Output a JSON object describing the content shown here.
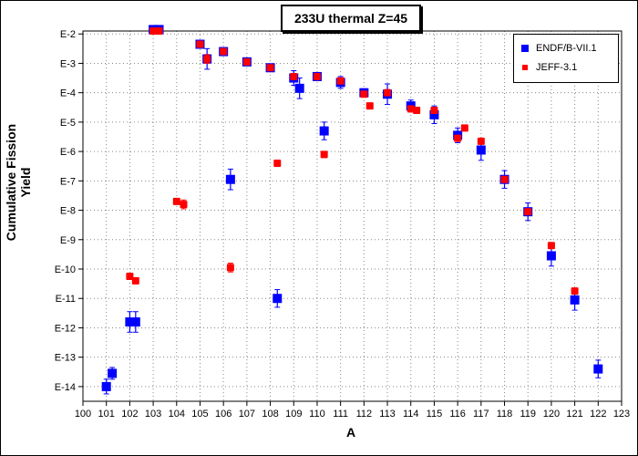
{
  "chart_data": {
    "type": "scatter",
    "title": "233U thermal Z=45",
    "xlabel": "A",
    "ylabel": "Cumulative Fission Yield",
    "xlim": [
      100,
      123
    ],
    "ylim_exponent": [
      -14.5,
      -1.9
    ],
    "y_scale": "log",
    "x_ticks": [
      100,
      101,
      102,
      103,
      104,
      105,
      106,
      107,
      108,
      109,
      110,
      111,
      112,
      113,
      114,
      115,
      116,
      117,
      118,
      119,
      120,
      121,
      122,
      123
    ],
    "y_ticks": [
      {
        "exp": -2,
        "label": "E-2"
      },
      {
        "exp": -3,
        "label": "E-3"
      },
      {
        "exp": -4,
        "label": "E-4"
      },
      {
        "exp": -5,
        "label": "E-5"
      },
      {
        "exp": -6,
        "label": "E-6"
      },
      {
        "exp": -7,
        "label": "E-7"
      },
      {
        "exp": -8,
        "label": "E-8"
      },
      {
        "exp": -9,
        "label": "E-9"
      },
      {
        "exp": -10,
        "label": "E-10"
      },
      {
        "exp": -11,
        "label": "E-11"
      },
      {
        "exp": -12,
        "label": "E-12"
      },
      {
        "exp": -13,
        "label": "E-13"
      },
      {
        "exp": -14,
        "label": "E-14"
      }
    ],
    "grid": true,
    "legend_position": "top-right",
    "series": [
      {
        "name": "ENDF/B-VII.1",
        "color": "#0000ff",
        "marker": "square",
        "points": [
          {
            "x": 101,
            "exp": -14.0,
            "err": 0.25
          },
          {
            "x": 101.25,
            "exp": -13.55,
            "err": 0.2
          },
          {
            "x": 102,
            "exp": -11.8,
            "err": 0.35
          },
          {
            "x": 102.25,
            "exp": -11.8,
            "err": 0.35
          },
          {
            "x": 103,
            "exp": -1.85,
            "err": 0.1
          },
          {
            "x": 103.25,
            "exp": -1.85,
            "err": 0.1
          },
          {
            "x": 105,
            "exp": -2.35,
            "err": 0.1
          },
          {
            "x": 105.3,
            "exp": -2.85,
            "err": 0.35
          },
          {
            "x": 106,
            "exp": -2.6,
            "err": 0.1
          },
          {
            "x": 106.3,
            "exp": -6.95,
            "err": 0.35
          },
          {
            "x": 107,
            "exp": -2.95,
            "err": 0.05
          },
          {
            "x": 108,
            "exp": -3.15,
            "err": 0.05
          },
          {
            "x": 108.3,
            "exp": -11.0,
            "err": 0.3
          },
          {
            "x": 109,
            "exp": -3.5,
            "err": 0.25
          },
          {
            "x": 109.25,
            "exp": -3.85,
            "err": 0.35
          },
          {
            "x": 110,
            "exp": -3.45,
            "err": 0.05
          },
          {
            "x": 110.3,
            "exp": -5.3,
            "err": 0.3
          },
          {
            "x": 111,
            "exp": -3.65,
            "err": 0.2
          },
          {
            "x": 112,
            "exp": -4.0,
            "err": 0.1
          },
          {
            "x": 113,
            "exp": -4.05,
            "err": 0.35
          },
          {
            "x": 114,
            "exp": -4.45,
            "err": 0.2
          },
          {
            "x": 115,
            "exp": -4.75,
            "err": 0.3
          },
          {
            "x": 116,
            "exp": -5.45,
            "err": 0.25
          },
          {
            "x": 117,
            "exp": -5.95,
            "err": 0.35
          },
          {
            "x": 118,
            "exp": -6.95,
            "err": 0.3
          },
          {
            "x": 119,
            "exp": -8.05,
            "err": 0.3
          },
          {
            "x": 120,
            "exp": -9.55,
            "err": 0.35
          },
          {
            "x": 121,
            "exp": -11.05,
            "err": 0.35
          },
          {
            "x": 122,
            "exp": -13.4,
            "err": 0.3
          }
        ]
      },
      {
        "name": "JEFF-3.1",
        "color": "#ff0000",
        "marker": "square",
        "points": [
          {
            "x": 102,
            "exp": -10.25,
            "err": 0.1
          },
          {
            "x": 102.25,
            "exp": -10.4,
            "err": 0.1
          },
          {
            "x": 103,
            "exp": -1.9,
            "err": 0.05
          },
          {
            "x": 103.25,
            "exp": -1.9,
            "err": 0.05
          },
          {
            "x": 104,
            "exp": -7.7,
            "err": 0.05
          },
          {
            "x": 104.3,
            "exp": -7.8,
            "err": 0.15
          },
          {
            "x": 105,
            "exp": -2.35,
            "err": 0.05
          },
          {
            "x": 105.3,
            "exp": -2.85,
            "err": 0.15
          },
          {
            "x": 106,
            "exp": -2.6,
            "err": 0.05
          },
          {
            "x": 106.3,
            "exp": -9.95,
            "err": 0.15
          },
          {
            "x": 107,
            "exp": -2.95,
            "err": 0.05
          },
          {
            "x": 108,
            "exp": -3.15,
            "err": 0.05
          },
          {
            "x": 108.3,
            "exp": -6.4,
            "err": 0.1
          },
          {
            "x": 109,
            "exp": -3.45,
            "err": 0.05
          },
          {
            "x": 110,
            "exp": -3.45,
            "err": 0.05
          },
          {
            "x": 110.3,
            "exp": -6.1,
            "err": 0.1
          },
          {
            "x": 111,
            "exp": -3.6,
            "err": 0.05
          },
          {
            "x": 112,
            "exp": -4.05,
            "err": 0.05
          },
          {
            "x": 112.25,
            "exp": -4.45,
            "err": 0.05
          },
          {
            "x": 113,
            "exp": -4.0,
            "err": 0.1
          },
          {
            "x": 114,
            "exp": -4.55,
            "err": 0.1
          },
          {
            "x": 114.25,
            "exp": -4.6,
            "err": 0.05
          },
          {
            "x": 115,
            "exp": -4.6,
            "err": 0.05
          },
          {
            "x": 116,
            "exp": -5.55,
            "err": 0.1
          },
          {
            "x": 116.3,
            "exp": -5.2,
            "err": 0.05
          },
          {
            "x": 117,
            "exp": -5.65,
            "err": 0.05
          },
          {
            "x": 118,
            "exp": -6.95,
            "err": 0.1
          },
          {
            "x": 119,
            "exp": -8.05,
            "err": 0.1
          },
          {
            "x": 120,
            "exp": -9.2,
            "err": 0.1
          },
          {
            "x": 121,
            "exp": -10.75,
            "err": 0.1
          }
        ]
      }
    ]
  }
}
